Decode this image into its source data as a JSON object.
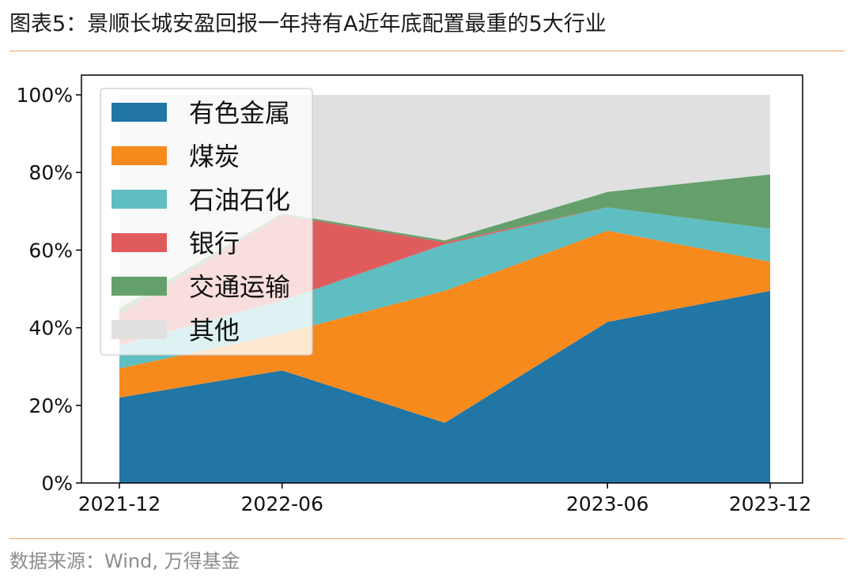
{
  "title": "图表5：景顺长城安盈回报一年持有A近年底配置最重的5大行业",
  "source": "数据来源：Wind, 万得基金",
  "chart_data": {
    "type": "area",
    "stacked": true,
    "x": [
      "2021-12",
      "2022-06",
      "2022-12",
      "2023-06",
      "2023-12"
    ],
    "xtick_labels": [
      "2021-12",
      "2022-06",
      "",
      "2023-06",
      "2023-12"
    ],
    "yticks": [
      "0%",
      "20%",
      "40%",
      "60%",
      "80%",
      "100%"
    ],
    "ylim": [
      0,
      100
    ],
    "legend_position": "upper-left",
    "series": [
      {
        "name": "有色金属",
        "color": "#2176a5",
        "values": [
          22,
          29,
          15.5,
          41.5,
          49.5
        ]
      },
      {
        "name": "煤炭",
        "color": "#f78a1d",
        "values": [
          7.5,
          9.5,
          34,
          23.5,
          7.5
        ]
      },
      {
        "name": "石油石化",
        "color": "#5fbec2",
        "values": [
          6,
          8.5,
          12,
          6,
          8.5
        ]
      },
      {
        "name": "银行",
        "color": "#e05c5c",
        "values": [
          8,
          22,
          0.5,
          0,
          0
        ]
      },
      {
        "name": "交通运输",
        "color": "#65a06c",
        "values": [
          1.5,
          0.5,
          0.5,
          4,
          14
        ]
      },
      {
        "name": "其他",
        "color": "#e0e0e0",
        "values": [
          55,
          30.5,
          37.5,
          25,
          20.5
        ]
      }
    ]
  }
}
